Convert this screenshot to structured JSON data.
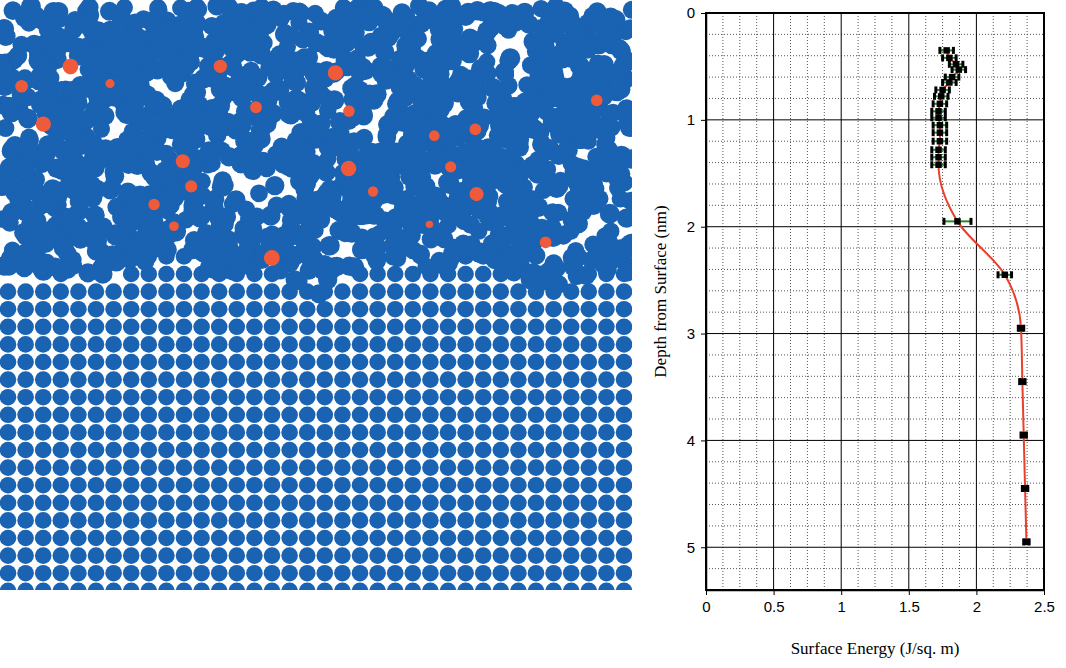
{
  "chart_data": {
    "type": "line",
    "x_label": "Surface Energy (J/sq. m)",
    "y_label": "Depth from Surface (nm)",
    "xlim": [
      0,
      2.5
    ],
    "ylim": [
      0,
      5.4
    ],
    "xticks": [
      0,
      0.5,
      1,
      1.5,
      2,
      2.5
    ],
    "yticks": [
      0,
      1,
      2,
      3,
      4,
      5
    ],
    "grid": true,
    "x": [
      1.78,
      1.8,
      1.85,
      1.87,
      1.82,
      1.8,
      1.75,
      1.74,
      1.73,
      1.72,
      1.72,
      1.73,
      1.73,
      1.73,
      1.72,
      1.72,
      1.72,
      1.86,
      2.21,
      2.33,
      2.34,
      2.35,
      2.36,
      2.37
    ],
    "values": [
      0.35,
      0.42,
      0.48,
      0.53,
      0.6,
      0.65,
      0.72,
      0.78,
      0.85,
      0.92,
      0.98,
      1.05,
      1.12,
      1.2,
      1.28,
      1.35,
      1.42,
      1.95,
      2.45,
      2.95,
      3.45,
      3.95,
      4.45,
      4.95
    ],
    "errors": [
      0.05,
      0.05,
      0.05,
      0.05,
      0.05,
      0.05,
      0.05,
      0.05,
      0.05,
      0.05,
      0.05,
      0.05,
      0.05,
      0.05,
      0.05,
      0.05,
      0.05,
      0.1,
      0.05,
      0.02,
      0.02,
      0.02,
      0.02,
      0.02
    ],
    "color": "#e8402a",
    "marker": "square"
  }
}
